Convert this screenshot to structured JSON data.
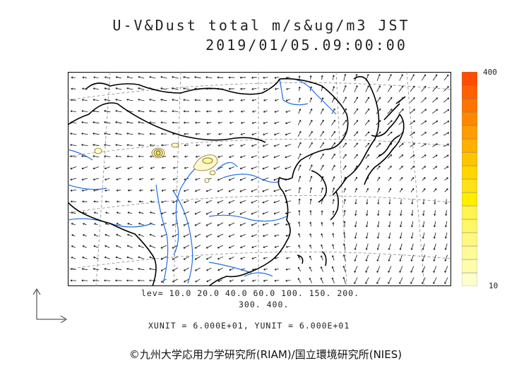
{
  "header": {
    "title_line1": "U-V&Dust total m/s&ug/m3 JST",
    "title_line2": "2019/01/05.09:00:00"
  },
  "colorbar": {
    "max_label": "400",
    "min_label": "10",
    "colors": [
      "#ffffcc",
      "#fffcb0",
      "#fffa98",
      "#fff880",
      "#fff668",
      "#fff450",
      "#ffee00",
      "#ffe21a",
      "#ffd600",
      "#ffc400",
      "#ffb000",
      "#ff9c00",
      "#ff8800",
      "#ff7400",
      "#ff6000",
      "#ff4c00"
    ]
  },
  "levels": {
    "line1": "lev= 10.0 20.0 40.0 60.0 100. 150. 200.",
    "line2": "300. 400."
  },
  "units": "XUNIT = 6.000E+01, YUNIT = 6.000E+01",
  "credit": "©九州大学応用力学研究所(RIAM)/国立環境研究所(NIES)",
  "colors": {
    "coast": "#000000",
    "river": "#1f6fe0",
    "grid": "#888888",
    "dust_fill": "#fffacd",
    "dust_edge": "#8a6d1f"
  },
  "icons": {
    "axis": "xy-axis-icon"
  }
}
